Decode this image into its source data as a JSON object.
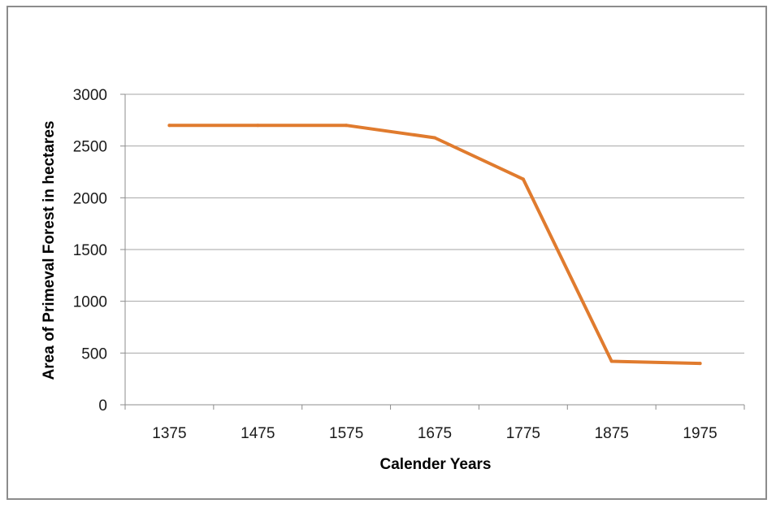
{
  "chart_data": {
    "type": "line",
    "title": "",
    "xlabel": "Calender Years",
    "ylabel": "Area of Primeval Forest in hectares",
    "categories": [
      "1375",
      "1475",
      "1575",
      "1675",
      "1775",
      "1875",
      "1975"
    ],
    "series": [
      {
        "values": [
          2700,
          2700,
          2700,
          2580,
          2180,
          420,
          400
        ]
      }
    ],
    "ylim": [
      0,
      3000
    ],
    "yticks": [
      0,
      500,
      1000,
      1500,
      2000,
      2500,
      3000
    ],
    "grid": true,
    "legend": "none",
    "colors": {
      "line": "#E07B2E",
      "grid": "#a6a6a6",
      "axis": "#8c8c8c"
    }
  }
}
